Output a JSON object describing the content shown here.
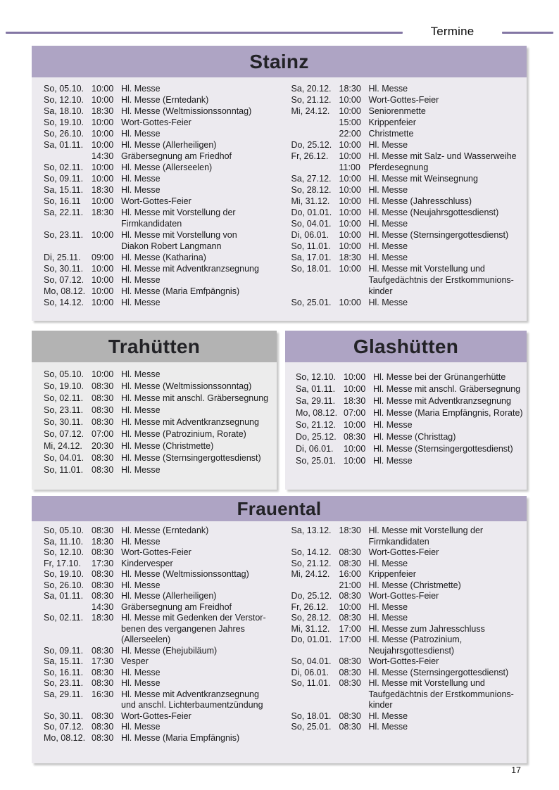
{
  "page": {
    "header_label": "Termine",
    "page_number": "17"
  },
  "colors": {
    "accent_purple": "#8376a4",
    "header_purple": "#aea4c4",
    "header_gray": "#b3b3b3",
    "panel_background": "#eceaef",
    "panel_background_gray": "#ececec"
  },
  "sections": [
    {
      "id": "stainz",
      "title": "Stainz",
      "header_style": "purple",
      "columns": [
        [
          {
            "date": "So, 05.10.",
            "time": "10:00",
            "lines": [
              "Hl. Messe"
            ]
          },
          {
            "date": "So, 12.10.",
            "time": "10:00",
            "lines": [
              "Hl. Messe (Erntedank)"
            ]
          },
          {
            "date": "Sa, 18.10.",
            "time": "18:30",
            "lines": [
              "Hl. Messe (Weltmissionssonntag)"
            ]
          },
          {
            "date": "So, 19.10.",
            "time": "10:00",
            "lines": [
              "Wort-Gottes-Feier"
            ]
          },
          {
            "date": "So, 26.10.",
            "time": "10:00",
            "lines": [
              "Hl. Messe"
            ]
          },
          {
            "date": "Sa, 01.11.",
            "time": "10:00",
            "lines": [
              "Hl. Messe (Allerheiligen)"
            ]
          },
          {
            "date": "",
            "time": "14:30",
            "lines": [
              "Gräbersegnung am Friedhof"
            ]
          },
          {
            "date": "So, 02.11.",
            "time": "10:00",
            "lines": [
              "Hl. Messe (Allerseelen)"
            ]
          },
          {
            "date": "So, 09.11.",
            "time": "10:00",
            "lines": [
              "Hl. Messe"
            ]
          },
          {
            "date": "Sa, 15.11.",
            "time": "18:30",
            "lines": [
              "Hl. Messe"
            ]
          },
          {
            "date": "So, 16.11",
            "time": "10:00",
            "lines": [
              "Wort-Gottes-Feier"
            ]
          },
          {
            "date": "Sa, 22.11.",
            "time": "18:30",
            "lines": [
              "Hl. Messe mit Vorstellung der",
              "Firmkandidaten"
            ]
          },
          {
            "date": "So, 23.11.",
            "time": "10:00",
            "lines": [
              "Hl. Messe mit Vorstellung von",
              "Diakon Robert Langmann"
            ]
          },
          {
            "date": "Di, 25.11.",
            "time": "09:00",
            "lines": [
              "Hl. Messe (Katharina)"
            ]
          },
          {
            "date": "So, 30.11.",
            "time": "10:00",
            "lines": [
              "Hl. Messe mit Adventkranzsegnung"
            ]
          },
          {
            "date": "So, 07.12.",
            "time": "10:00",
            "lines": [
              "Hl. Messe"
            ]
          },
          {
            "date": "Mo, 08.12.",
            "time": "10:00",
            "lines": [
              "Hl. Messe (Maria Emfpängnis)"
            ]
          },
          {
            "date": "So, 14.12.",
            "time": "10:00",
            "lines": [
              "Hl. Messe"
            ]
          }
        ],
        [
          {
            "date": "Sa, 20.12.",
            "time": "18:30",
            "lines": [
              "Hl. Messe"
            ]
          },
          {
            "date": "So, 21.12.",
            "time": "10:00",
            "lines": [
              "Wort-Gottes-Feier"
            ]
          },
          {
            "date": "Mi, 24.12.",
            "time": "10:00",
            "lines": [
              "Seniorenmette"
            ]
          },
          {
            "date": "",
            "time": "15:00",
            "lines": [
              "Krippenfeier"
            ]
          },
          {
            "date": "",
            "time": "22:00",
            "lines": [
              "Christmette"
            ]
          },
          {
            "date": "Do, 25.12.",
            "time": "10:00",
            "lines": [
              "Hl. Messe"
            ]
          },
          {
            "date": "Fr, 26.12.",
            "time": "10:00",
            "lines": [
              "Hl. Messe mit Salz- und Wasserweihe"
            ]
          },
          {
            "date": "",
            "time": "11:00",
            "lines": [
              "Pferdesegnung"
            ]
          },
          {
            "date": "Sa, 27.12.",
            "time": "10:00",
            "lines": [
              "Hl. Messe mit Weinsegnung"
            ]
          },
          {
            "date": "So, 28.12.",
            "time": "10:00",
            "lines": [
              "Hl. Messe"
            ]
          },
          {
            "date": "Mi, 31.12.",
            "time": "10:00",
            "lines": [
              "Hl. Messe (Jahresschluss)"
            ]
          },
          {
            "date": "Do, 01.01.",
            "time": "10:00",
            "lines": [
              "Hl. Messe (Neujahrsgottesdienst)"
            ]
          },
          {
            "date": "So, 04.01.",
            "time": "10:00",
            "lines": [
              "Hl. Messe"
            ]
          },
          {
            "date": "Di, 06.01.",
            "time": "10:00",
            "lines": [
              "Hl. Messe (Sternsingergottesdienst)"
            ]
          },
          {
            "date": "So, 11.01.",
            "time": "10:00",
            "lines": [
              "Hl. Messe"
            ]
          },
          {
            "date": "Sa, 17.01.",
            "time": "18:30",
            "lines": [
              "Hl. Messe"
            ]
          },
          {
            "date": "So, 18.01.",
            "time": "10:00",
            "lines": [
              "Hl. Messe mit Vorstellung und",
              "Taufgedächtnis der Erstkommunions-",
              "kinder"
            ]
          },
          {
            "date": "So, 25.01.",
            "time": "10:00",
            "lines": [
              "Hl. Messe"
            ]
          }
        ]
      ]
    },
    {
      "id": "trahuetten",
      "title": "Trahütten",
      "header_style": "gray",
      "columns": [
        [
          {
            "date": "So, 05.10.",
            "time": "10:00",
            "lines": [
              "Hl. Messe"
            ]
          },
          {
            "date": "So, 19.10.",
            "time": "08:30",
            "lines": [
              "Hl. Messe (Weltmissionssonntag)"
            ]
          },
          {
            "date": "So, 02.11.",
            "time": "08:30",
            "lines": [
              "Hl. Messe mit anschl. Gräbersegnung"
            ]
          },
          {
            "date": "So, 23.11.",
            "time": "08:30",
            "lines": [
              "Hl. Messe"
            ]
          },
          {
            "date": "So, 30.11.",
            "time": "08:30",
            "lines": [
              "Hl. Messe mit Adventkranzsegnung"
            ]
          },
          {
            "date": "So, 07.12.",
            "time": "07:00",
            "lines": [
              "Hl. Messe (Patrozinium, Rorate)"
            ]
          },
          {
            "date": "Mi, 24.12.",
            "time": "20:30",
            "lines": [
              "Hl. Messe (Christmette)"
            ]
          },
          {
            "date": "So, 04.01.",
            "time": "08:30",
            "lines": [
              "Hl. Messe (Sternsingergottesdienst)"
            ]
          },
          {
            "date": "So, 11.01.",
            "time": "08:30",
            "lines": [
              "Hl. Messe"
            ]
          }
        ]
      ]
    },
    {
      "id": "glashuetten",
      "title": "Glashütten",
      "header_style": "purple",
      "columns": [
        [
          {
            "date": "So, 12.10.",
            "time": "10:00",
            "lines": [
              "Hl. Messe bei der Grünangerhütte"
            ]
          },
          {
            "date": "Sa, 01.11.",
            "time": "10:00",
            "lines": [
              "Hl. Messe mit anschl. Gräbersegnung"
            ]
          },
          {
            "date": "Sa, 29.11.",
            "time": "18:30",
            "lines": [
              "Hl. Messe mit Adventkranzsegnung"
            ]
          },
          {
            "date": "Mo, 08.12.",
            "time": "07:00",
            "lines": [
              "Hl. Messe (Maria Empfängnis, Rorate)"
            ]
          },
          {
            "date": "So, 21.12.",
            "time": "10:00",
            "lines": [
              "Hl. Messe"
            ]
          },
          {
            "date": "Do, 25.12.",
            "time": "08:30",
            "lines": [
              "Hl. Messe (Christtag)"
            ]
          },
          {
            "date": "Di, 06.01.",
            "time": "10:00",
            "lines": [
              "Hl. Messe (Sternsingergottesdienst)"
            ]
          },
          {
            "date": "So, 25.01.",
            "time": "10:00",
            "lines": [
              "Hl. Messe"
            ]
          }
        ]
      ]
    },
    {
      "id": "frauental",
      "title": "Frauental",
      "header_style": "purple",
      "columns": [
        [
          {
            "date": "So, 05.10.",
            "time": "08:30",
            "lines": [
              "Hl. Messe (Erntedank)"
            ]
          },
          {
            "date": "Sa, 11.10.",
            "time": "18:30",
            "lines": [
              "Hl. Messe"
            ]
          },
          {
            "date": "So, 12.10.",
            "time": "08:30",
            "lines": [
              "Wort-Gottes-Feier"
            ]
          },
          {
            "date": "Fr, 17.10.",
            "time": "17:30",
            "lines": [
              "Kindervesper"
            ]
          },
          {
            "date": "So, 19.10.",
            "time": "08:30",
            "lines": [
              "Hl. Messe (Weltmissionssonttag)"
            ]
          },
          {
            "date": "So, 26.10.",
            "time": "08:30",
            "lines": [
              "Hl. Messe"
            ]
          },
          {
            "date": "Sa, 01.11.",
            "time": "08:30",
            "lines": [
              "Hl. Messe (Allerheiligen)"
            ]
          },
          {
            "date": "",
            "time": "14:30",
            "lines": [
              "Gräbersegnung am Freidhof"
            ]
          },
          {
            "date": "So, 02.11.",
            "time": "18:30",
            "lines": [
              "Hl. Messe mit Gedenken der Verstor-",
              "benen des vergangenen Jahres",
              "(Allerseelen)"
            ]
          },
          {
            "date": "So, 09.11.",
            "time": "08:30",
            "lines": [
              "Hl. Messe (Ehejubiläum)"
            ]
          },
          {
            "date": "Sa, 15.11.",
            "time": "17:30",
            "lines": [
              "Vesper"
            ]
          },
          {
            "date": "So, 16.11.",
            "time": "08:30",
            "lines": [
              "Hl. Messe"
            ]
          },
          {
            "date": "So, 23.11.",
            "time": "08:30",
            "lines": [
              "Hl. Messe"
            ]
          },
          {
            "date": "Sa, 29.11.",
            "time": "16:30",
            "lines": [
              "Hl. Messe mit Adventkranzsegnung",
              "und anschl. Lichterbaumentzündung"
            ]
          },
          {
            "date": "So, 30.11.",
            "time": "08:30",
            "lines": [
              "Wort-Gottes-Feier"
            ]
          },
          {
            "date": "So, 07.12.",
            "time": "08:30",
            "lines": [
              "Hl. Messe"
            ]
          },
          {
            "date": "Mo, 08.12.",
            "time": "08:30",
            "lines": [
              "Hl. Messe (Maria Empfängnis)"
            ]
          }
        ],
        [
          {
            "date": "Sa, 13.12.",
            "time": "18:30",
            "lines": [
              "Hl. Messe mit Vorstellung der",
              "Firmkandidaten"
            ]
          },
          {
            "date": "So, 14.12.",
            "time": "08:30",
            "lines": [
              "Wort-Gottes-Feier"
            ]
          },
          {
            "date": "So, 21.12.",
            "time": "08:30",
            "lines": [
              "Hl. Messe"
            ]
          },
          {
            "date": "Mi, 24.12.",
            "time": "16:00",
            "lines": [
              "Krippenfeier"
            ]
          },
          {
            "date": "",
            "time": "21:00",
            "lines": [
              "Hl. Messe (Christmette)"
            ]
          },
          {
            "date": "Do, 25.12.",
            "time": "08:30",
            "lines": [
              "Wort-Gottes-Feier"
            ]
          },
          {
            "date": "Fr, 26.12.",
            "time": "10:00",
            "lines": [
              "Hl. Messe"
            ]
          },
          {
            "date": "So, 28.12.",
            "time": "08:30",
            "lines": [
              "Hl. Messe"
            ]
          },
          {
            "date": "Mi, 31.12.",
            "time": "17:00",
            "lines": [
              "Hl. Messe zum Jahresschluss"
            ]
          },
          {
            "date": "Do, 01.01.",
            "time": "17:00",
            "lines": [
              "Hl. Messe (Patrozinium,",
              "Neujahrsgottesdienst)"
            ]
          },
          {
            "date": "So, 04.01.",
            "time": "08:30",
            "lines": [
              "Wort-Gottes-Feier"
            ]
          },
          {
            "date": "Di, 06.01.",
            "time": "08:30",
            "lines": [
              "Hl. Messe (Sternsingergottesdienst)"
            ]
          },
          {
            "date": "So, 11.01.",
            "time": "08:30",
            "lines": [
              "Hl. Messe mit Vorstellung und",
              "Taufgedächtnis der Erstkommunions-",
              "kinder"
            ]
          },
          {
            "date": "So, 18.01.",
            "time": "08:30",
            "lines": [
              "Hl. Messe"
            ]
          },
          {
            "date": "So, 25.01.",
            "time": "08:30",
            "lines": [
              "Hl. Messe"
            ]
          }
        ]
      ]
    }
  ]
}
